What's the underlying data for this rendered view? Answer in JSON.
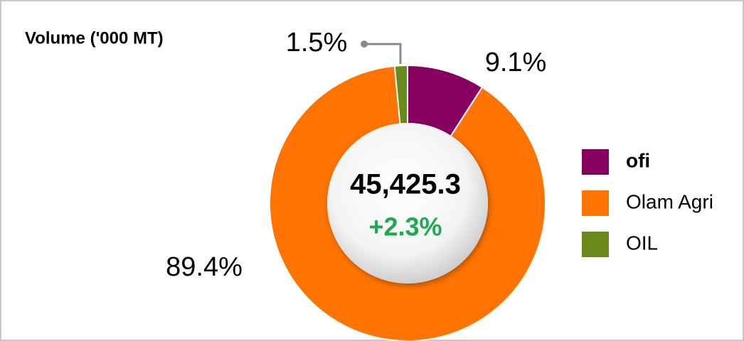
{
  "chart_data": {
    "type": "donut",
    "title": "Volume ('000 MT)",
    "categories": [
      "ofi",
      "Olam Agri",
      "OIL"
    ],
    "values": [
      9.1,
      89.4,
      1.5
    ],
    "value_labels": [
      "9.1%",
      "89.4%",
      "1.5%"
    ],
    "colors": [
      "#870060",
      "#ff7300",
      "#6a8a1c"
    ],
    "center_value": "45,425.3",
    "center_change": "+2.3%",
    "legend": "right"
  }
}
